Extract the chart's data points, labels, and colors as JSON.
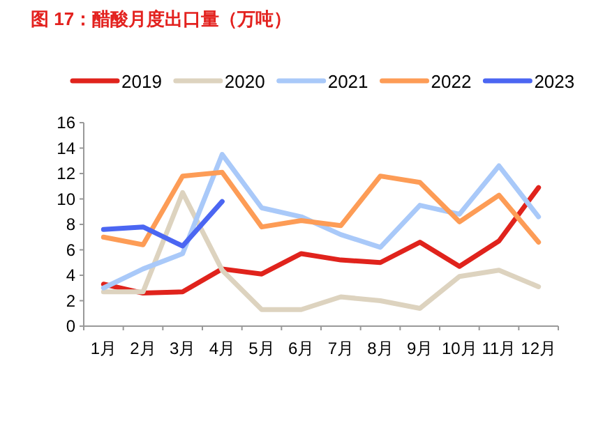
{
  "chart_data": {
    "type": "line",
    "title": "图 17：醋酸月度出口量（万吨）",
    "categories": [
      "1月",
      "2月",
      "3月",
      "4月",
      "5月",
      "6月",
      "7月",
      "8月",
      "9月",
      "10月",
      "11月",
      "12月"
    ],
    "series": [
      {
        "name": "2019",
        "color": "#e0231c",
        "values": [
          3.3,
          2.6,
          2.7,
          4.5,
          4.1,
          5.7,
          5.2,
          5.0,
          6.6,
          4.7,
          6.7,
          10.9
        ]
      },
      {
        "name": "2020",
        "color": "#ddd3bf",
        "values": [
          2.7,
          2.7,
          10.5,
          4.4,
          1.3,
          1.3,
          2.3,
          2.0,
          1.4,
          3.9,
          4.4,
          3.1
        ]
      },
      {
        "name": "2021",
        "color": "#a9c9f9",
        "values": [
          3.0,
          4.5,
          5.7,
          13.5,
          9.3,
          8.6,
          7.2,
          6.2,
          9.5,
          8.8,
          12.6,
          8.6
        ]
      },
      {
        "name": "2022",
        "color": "#fd9c56",
        "values": [
          7.0,
          6.4,
          11.8,
          12.1,
          7.8,
          8.3,
          7.9,
          11.8,
          11.3,
          8.2,
          10.3,
          6.6
        ]
      },
      {
        "name": "2023",
        "color": "#4b66f2",
        "values": [
          7.6,
          7.8,
          6.3,
          9.8,
          null,
          null,
          null,
          null,
          null,
          null,
          null,
          null
        ]
      }
    ],
    "ylim": [
      0,
      16
    ],
    "yticks": [
      0,
      2,
      4,
      6,
      8,
      10,
      12,
      14,
      16
    ],
    "grid": false,
    "legend": "top",
    "marker": "none",
    "line_style": "solid"
  }
}
